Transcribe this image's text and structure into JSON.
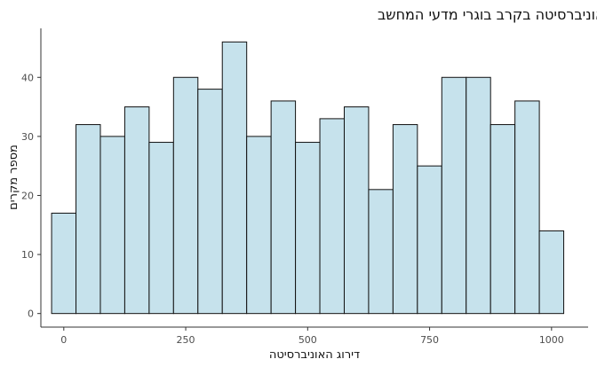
{
  "chart_data": {
    "type": "bar",
    "title": "התפלגות דירוג האוניברסיטה בקרב בוגרי מדעי המחשב",
    "xlabel": "דירוג האוניברסיטה",
    "ylabel": "מספר מקרים",
    "x": [
      0,
      50,
      100,
      150,
      200,
      250,
      300,
      350,
      400,
      450,
      500,
      550,
      600,
      650,
      700,
      750,
      800,
      850,
      900,
      950,
      1000
    ],
    "values": [
      17,
      32,
      30,
      35,
      29,
      40,
      38,
      46,
      30,
      36,
      29,
      33,
      35,
      21,
      32,
      25,
      40,
      40,
      32,
      36,
      14
    ],
    "bin_width": 50,
    "xlim": [
      -47,
      1075
    ],
    "ylim": [
      -2.3,
      48.3
    ],
    "xticks": [
      0,
      250,
      500,
      750,
      1000
    ],
    "yticks": [
      0,
      10,
      20,
      30,
      40
    ],
    "grid": false,
    "legend": "none",
    "bar_fill": "#c6e2ec",
    "bar_stroke": "#111111"
  }
}
